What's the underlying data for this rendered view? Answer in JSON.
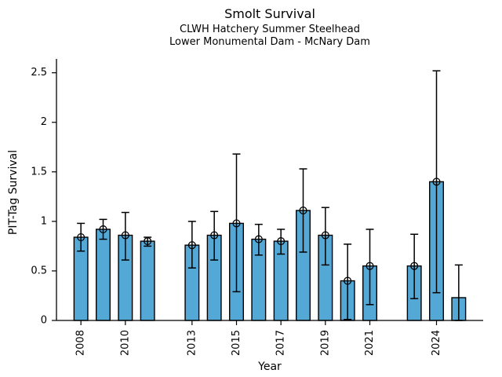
{
  "chart_data": {
    "type": "bar",
    "title": "Smolt Survival",
    "subtitle": [
      "CLWH Hatchery Summer Steelhead",
      "Lower Monumental Dam - McNary Dam"
    ],
    "xlabel": "Year",
    "ylabel": "PIT-Tag Survival",
    "xlim": [
      2006.9,
      2026.1
    ],
    "ylim": [
      0,
      2.64
    ],
    "grid": false,
    "legend": null,
    "bar_width_years": 0.62,
    "colors": {
      "bar_fill": "#54a8d6",
      "bar_edge": "#000000",
      "error_bar": "#000000",
      "marker": "#000000",
      "axis": "#000000",
      "text": "#000000",
      "background": "#ffffff"
    },
    "yticks": [
      {
        "v": 0,
        "label": "0"
      },
      {
        "v": 0.5,
        "label": "0.5"
      },
      {
        "v": 1,
        "label": "1"
      },
      {
        "v": 1.5,
        "label": "1.5"
      },
      {
        "v": 2,
        "label": "2"
      },
      {
        "v": 2.5,
        "label": "2.5"
      }
    ],
    "xticks": [
      {
        "v": 2008,
        "label": "2008"
      },
      {
        "v": 2010,
        "label": "2010"
      },
      {
        "v": 2013,
        "label": "2013"
      },
      {
        "v": 2015,
        "label": "2015"
      },
      {
        "v": 2017,
        "label": "2017"
      },
      {
        "v": 2019,
        "label": "2019"
      },
      {
        "v": 2021,
        "label": "2021"
      },
      {
        "v": 2024,
        "label": "2024"
      }
    ],
    "series": [
      {
        "name": "PIT-Tag Survival",
        "points": [
          {
            "year": 2008,
            "value": 0.84,
            "err_low": 0.7,
            "err_high": 0.98,
            "marker": true
          },
          {
            "year": 2009,
            "value": 0.92,
            "err_low": 0.82,
            "err_high": 1.02,
            "marker": true
          },
          {
            "year": 2010,
            "value": 0.86,
            "err_low": 0.61,
            "err_high": 1.09,
            "marker": true
          },
          {
            "year": 2011,
            "value": 0.8,
            "err_low": 0.75,
            "err_high": 0.84,
            "marker": true
          },
          {
            "year": 2013,
            "value": 0.76,
            "err_low": 0.53,
            "err_high": 1.0,
            "marker": true
          },
          {
            "year": 2014,
            "value": 0.86,
            "err_low": 0.61,
            "err_high": 1.1,
            "marker": true
          },
          {
            "year": 2015,
            "value": 0.98,
            "err_low": 0.29,
            "err_high": 1.68,
            "marker": true
          },
          {
            "year": 2016,
            "value": 0.82,
            "err_low": 0.66,
            "err_high": 0.97,
            "marker": true
          },
          {
            "year": 2017,
            "value": 0.8,
            "err_low": 0.67,
            "err_high": 0.92,
            "marker": true
          },
          {
            "year": 2018,
            "value": 1.11,
            "err_low": 0.69,
            "err_high": 1.53,
            "marker": true
          },
          {
            "year": 2019,
            "value": 0.86,
            "err_low": 0.56,
            "err_high": 1.14,
            "marker": true
          },
          {
            "year": 2020,
            "value": 0.4,
            "err_low": 0.01,
            "err_high": 0.77,
            "marker": true
          },
          {
            "year": 2021,
            "value": 0.55,
            "err_low": 0.16,
            "err_high": 0.92,
            "marker": true
          },
          {
            "year": 2023,
            "value": 0.55,
            "err_low": 0.22,
            "err_high": 0.87,
            "marker": true
          },
          {
            "year": 2024,
            "value": 1.4,
            "err_low": 0.28,
            "err_high": 2.52,
            "marker": true
          },
          {
            "year": 2025,
            "value": 0.23,
            "err_low": 0.0,
            "err_high": 0.56,
            "marker": false
          }
        ]
      }
    ]
  }
}
